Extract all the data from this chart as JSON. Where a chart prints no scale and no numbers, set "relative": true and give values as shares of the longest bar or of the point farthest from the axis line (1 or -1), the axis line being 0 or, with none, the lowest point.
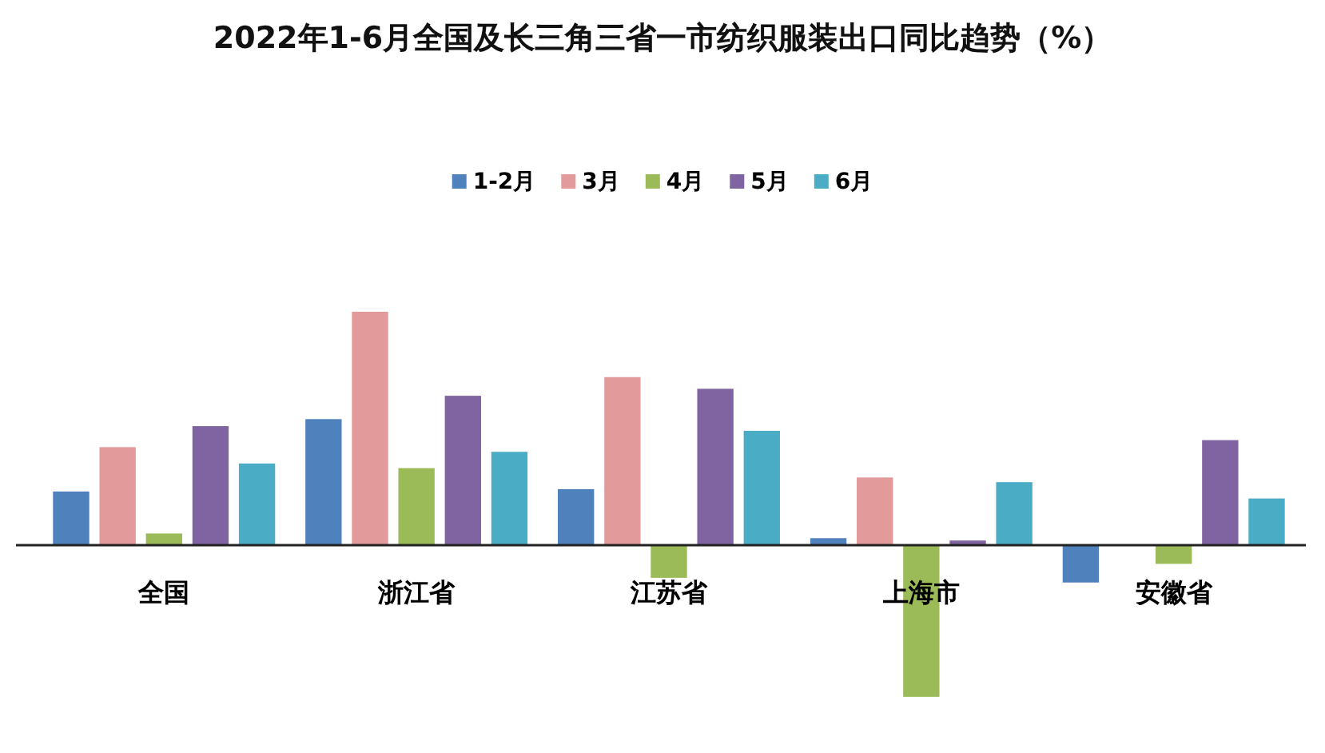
{
  "chart_data": {
    "type": "bar",
    "title": "2022年1-6月全国及长三角三省一市纺织服装出口同比趋势（%）",
    "categories": [
      "全国",
      "浙江省",
      "江苏省",
      "上海市",
      "安徽省"
    ],
    "relative": true,
    "legend": "top",
    "series": [
      {
        "name": "1-2月",
        "color": "#4f81bd",
        "values": [
          0.23,
          0.54,
          0.24,
          0.03,
          -0.16
        ]
      },
      {
        "name": "3月",
        "color": "#e39a9a",
        "values": [
          0.42,
          1,
          0.72,
          0.29,
          null
        ]
      },
      {
        "name": "4月",
        "color": "#9bbb59",
        "values": [
          0.05,
          0.33,
          -0.14,
          -0.65,
          -0.08
        ]
      },
      {
        "name": "5月",
        "color": "#8064a2",
        "values": [
          0.51,
          0.64,
          0.67,
          0.02,
          0.45
        ]
      },
      {
        "name": "6月",
        "color": "#4bacc6",
        "values": [
          0.35,
          0.4,
          0.49,
          0.27,
          0.2
        ]
      }
    ]
  }
}
